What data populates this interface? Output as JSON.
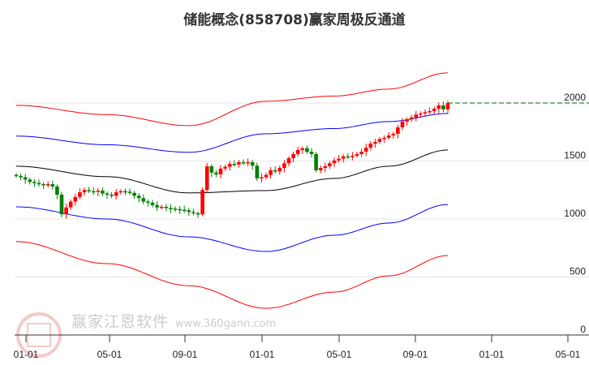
{
  "title": "储能概念(858708)赢家周极反通道",
  "watermark": {
    "brand": "赢家江恩软件",
    "url": "www.360gann.com",
    "seal": "江赢恩家"
  },
  "chart_data": {
    "type": "candlestick",
    "title": "储能概念(858708)赢家周极反通道",
    "ylim": [
      0,
      2300
    ],
    "yticks": [
      0,
      500,
      1000,
      1500,
      2000
    ],
    "xticks": [
      "01-01",
      "05-01",
      "09-01",
      "01-01",
      "05-01",
      "09-01",
      "01-01",
      "05-01"
    ],
    "last_price": 2000,
    "colors": {
      "up": "#ff0000",
      "down": "#008000",
      "outer": "#ff0000",
      "inner": "#0000ff",
      "mid": "#000000",
      "last": "#006400"
    },
    "close": [
      1370,
      1360,
      1340,
      1320,
      1310,
      1300,
      1290,
      1300,
      1280,
      1210,
      1040,
      1100,
      1150,
      1190,
      1230,
      1250,
      1240,
      1235,
      1245,
      1220,
      1210,
      1200,
      1230,
      1240,
      1235,
      1225,
      1200,
      1180,
      1150,
      1140,
      1120,
      1100,
      1105,
      1095,
      1090,
      1085,
      1080,
      1075,
      1060,
      1050,
      1040,
      1250,
      1455,
      1400,
      1385,
      1435,
      1450,
      1475,
      1470,
      1490,
      1480,
      1490,
      1460,
      1350,
      1360,
      1380,
      1420,
      1410,
      1440,
      1480,
      1525,
      1560,
      1595,
      1610,
      1580,
      1560,
      1420,
      1440,
      1455,
      1480,
      1505,
      1520,
      1540,
      1535,
      1545,
      1560,
      1580,
      1615,
      1650,
      1665,
      1690,
      1700,
      1720,
      1735,
      1790,
      1840,
      1860,
      1875,
      1900,
      1910,
      1920,
      1930,
      1950,
      1980,
      1945,
      2000
    ],
    "bands": {
      "week": [
        0,
        20,
        38,
        55,
        70,
        82,
        95
      ],
      "outer_upper": [
        1980,
        1900,
        1805,
        2015,
        2060,
        2120,
        2260
      ],
      "inner_upper": [
        1715,
        1640,
        1575,
        1735,
        1780,
        1840,
        1910
      ],
      "middle": [
        1455,
        1365,
        1225,
        1245,
        1350,
        1455,
        1595
      ],
      "inner_lower": [
        1105,
        1000,
        846,
        720,
        860,
        965,
        1125
      ],
      "outer_lower": [
        805,
        615,
        425,
        230,
        370,
        510,
        685
      ]
    }
  }
}
